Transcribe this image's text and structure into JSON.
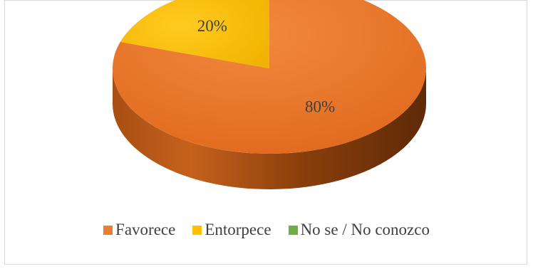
{
  "chart_data": {
    "type": "pie",
    "style": "3d",
    "categories": [
      "Favorece",
      "Entorpece",
      "No se / No conozco"
    ],
    "values": [
      80,
      20,
      0
    ],
    "data_labels": [
      "80%",
      "20%",
      ""
    ],
    "colors": [
      "#ED7D31",
      "#FFC000",
      "#70AD47"
    ],
    "title": "",
    "legend_position": "bottom"
  }
}
